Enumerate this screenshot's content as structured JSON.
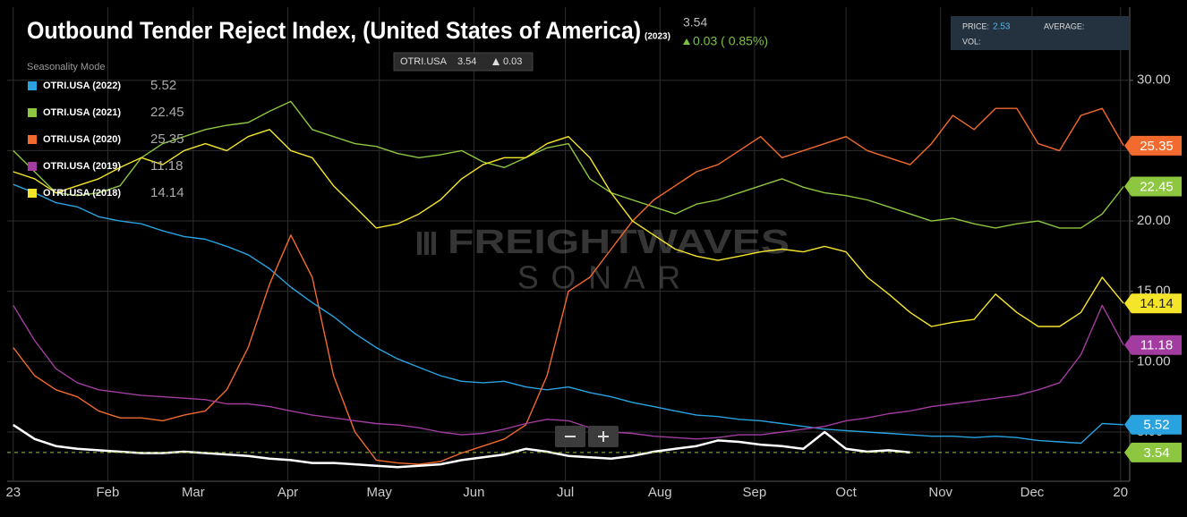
{
  "chart_data": {
    "type": "line",
    "title": "Outbound Tender Reject Index, (United States of America)",
    "title_year": "(2023)",
    "header": {
      "value": 3.54,
      "change": "0.03 ( 0.85%)"
    },
    "tooltip": {
      "symbol": "OTRI.USA",
      "value": 3.54,
      "change": 0.03
    },
    "price_panel": {
      "price_label": "PRICE:",
      "price": 2.53,
      "average_label": "AVERAGE:",
      "vol_label": "VOL:"
    },
    "legend_title": "Seasonality Mode",
    "watermark": [
      "FREIGHTWAVES",
      "SONAR"
    ],
    "x": [
      0,
      7,
      14,
      21,
      28,
      35,
      42,
      49,
      56,
      63,
      70,
      77,
      84,
      91,
      98,
      105,
      112,
      119,
      126,
      133,
      140,
      147,
      154,
      161,
      168,
      175,
      182,
      189,
      196,
      203,
      210,
      217,
      224,
      231,
      238,
      245,
      252,
      259,
      266,
      273,
      280,
      287,
      294,
      301,
      308,
      315,
      322,
      329,
      336,
      343,
      350,
      357,
      364
    ],
    "xlim": [
      -2,
      366
    ],
    "xticks": [
      {
        "value": 0,
        "label": "23"
      },
      {
        "value": 31,
        "label": "Feb"
      },
      {
        "value": 59,
        "label": "Mar"
      },
      {
        "value": 90,
        "label": "Apr"
      },
      {
        "value": 120,
        "label": "May"
      },
      {
        "value": 151,
        "label": "Jun"
      },
      {
        "value": 181,
        "label": "Jul"
      },
      {
        "value": 212,
        "label": "Aug"
      },
      {
        "value": 243,
        "label": "Sep"
      },
      {
        "value": 273,
        "label": "Oct"
      },
      {
        "value": 304,
        "label": "Nov"
      },
      {
        "value": 334,
        "label": "Dec"
      },
      {
        "value": 363,
        "label": "20"
      }
    ],
    "ylim": [
      1.5,
      35.2
    ],
    "yticks": [
      {
        "value": 5,
        "label": "5.00"
      },
      {
        "value": 10,
        "label": "10.00"
      },
      {
        "value": 15,
        "label": "15.00"
      },
      {
        "value": 20,
        "label": "20.00"
      },
      {
        "value": 25,
        "label": "25.00"
      },
      {
        "value": 30,
        "label": "30.00"
      }
    ],
    "grid": true,
    "series": [
      {
        "color": "#ffffff",
        "values": [
          5.5,
          4.5,
          4.0,
          3.8,
          3.7,
          3.6,
          3.5,
          3.5,
          3.6,
          3.5,
          3.4,
          3.3,
          3.1,
          3.0,
          2.8,
          2.8,
          2.7,
          2.6,
          2.5,
          2.6,
          2.7,
          3.0,
          3.2,
          3.4,
          3.8,
          3.6,
          3.3,
          3.2,
          3.1,
          3.3,
          3.6,
          3.8,
          4.0,
          4.4,
          4.3,
          4.1,
          4.0,
          3.8,
          5.0,
          3.8,
          3.6,
          3.7,
          3.54,
          null,
          null,
          null,
          null,
          null,
          null,
          null,
          null,
          null,
          null
        ]
      },
      {
        "name": "OTRI.USA (2022)",
        "color": "#29a3e0",
        "values": [
          22.6,
          22.0,
          21.3,
          21.0,
          20.3,
          20.0,
          19.8,
          19.3,
          18.9,
          18.7,
          18.2,
          17.6,
          16.6,
          15.3,
          14.2,
          13.2,
          12.0,
          11.0,
          10.2,
          9.6,
          9.0,
          8.6,
          8.5,
          8.6,
          8.2,
          8.0,
          8.2,
          7.8,
          7.5,
          7.1,
          6.8,
          6.5,
          6.2,
          6.1,
          5.9,
          5.8,
          5.6,
          5.4,
          5.2,
          5.1,
          5.0,
          4.9,
          4.8,
          4.7,
          4.7,
          4.6,
          4.7,
          4.6,
          4.4,
          4.3,
          4.2,
          5.6,
          5.52
        ]
      },
      {
        "name": "OTRI.USA (2021)",
        "color": "#8dc63f",
        "values": [
          25.0,
          23.5,
          22.0,
          21.8,
          22.0,
          22.5,
          24.5,
          25.5,
          26.0,
          26.5,
          26.8,
          27.0,
          27.8,
          28.5,
          26.5,
          26.0,
          25.5,
          25.3,
          24.8,
          24.5,
          24.7,
          25.0,
          24.2,
          23.8,
          24.5,
          25.2,
          25.5,
          23.0,
          22.0,
          21.5,
          21.0,
          20.5,
          21.2,
          21.5,
          22.0,
          22.5,
          23.0,
          22.4,
          22.0,
          21.8,
          21.5,
          21.0,
          20.5,
          20.0,
          20.2,
          19.8,
          19.5,
          19.8,
          20.0,
          19.5,
          19.5,
          20.5,
          22.45
        ]
      },
      {
        "name": "OTRI.USA (2020)",
        "color": "#f26a2e",
        "values": [
          11.0,
          9.0,
          8.0,
          7.5,
          6.5,
          6.0,
          6.0,
          5.8,
          6.2,
          6.5,
          8.0,
          11.0,
          15.5,
          19.0,
          16.0,
          9.0,
          5.0,
          3.0,
          2.8,
          2.7,
          2.9,
          3.5,
          4.0,
          4.5,
          5.5,
          9.0,
          15.0,
          16.0,
          18.0,
          20.0,
          21.5,
          22.5,
          23.5,
          24.0,
          25.0,
          26.0,
          24.5,
          25.0,
          25.5,
          26.0,
          25.0,
          24.5,
          24.0,
          25.5,
          27.5,
          26.5,
          28.0,
          28.0,
          25.5,
          25.0,
          27.5,
          28.0,
          25.35
        ]
      },
      {
        "name": "OTRI.USA (2019)",
        "color": "#a23ca0",
        "values": [
          14.0,
          11.5,
          9.5,
          8.5,
          8.0,
          7.8,
          7.6,
          7.5,
          7.4,
          7.3,
          7.0,
          7.0,
          6.8,
          6.5,
          6.2,
          6.0,
          5.8,
          5.6,
          5.5,
          5.3,
          5.0,
          4.8,
          4.9,
          5.2,
          5.6,
          5.9,
          5.8,
          5.3,
          5.0,
          4.9,
          4.7,
          4.6,
          4.5,
          4.6,
          4.8,
          4.8,
          5.0,
          5.2,
          5.4,
          5.8,
          6.0,
          6.3,
          6.5,
          6.8,
          7.0,
          7.2,
          7.4,
          7.6,
          8.0,
          8.5,
          10.5,
          14.0,
          11.18
        ]
      },
      {
        "name": "OTRI.USA (2018)",
        "color": "#f5e52a",
        "values": [
          23.5,
          23.0,
          22.0,
          22.5,
          23.0,
          23.8,
          24.5,
          24.0,
          25.0,
          25.5,
          25.0,
          26.0,
          26.5,
          25.0,
          24.5,
          22.5,
          21.0,
          19.5,
          19.8,
          20.5,
          21.5,
          23.0,
          24.0,
          24.5,
          24.5,
          25.5,
          26.0,
          24.5,
          22.0,
          20.0,
          19.0,
          18.0,
          17.5,
          17.2,
          17.5,
          17.8,
          18.0,
          17.8,
          18.2,
          17.8,
          16.0,
          14.8,
          13.5,
          12.5,
          12.8,
          13.0,
          14.8,
          13.5,
          12.5,
          12.5,
          13.5,
          16.0,
          14.14
        ]
      }
    ]
  }
}
